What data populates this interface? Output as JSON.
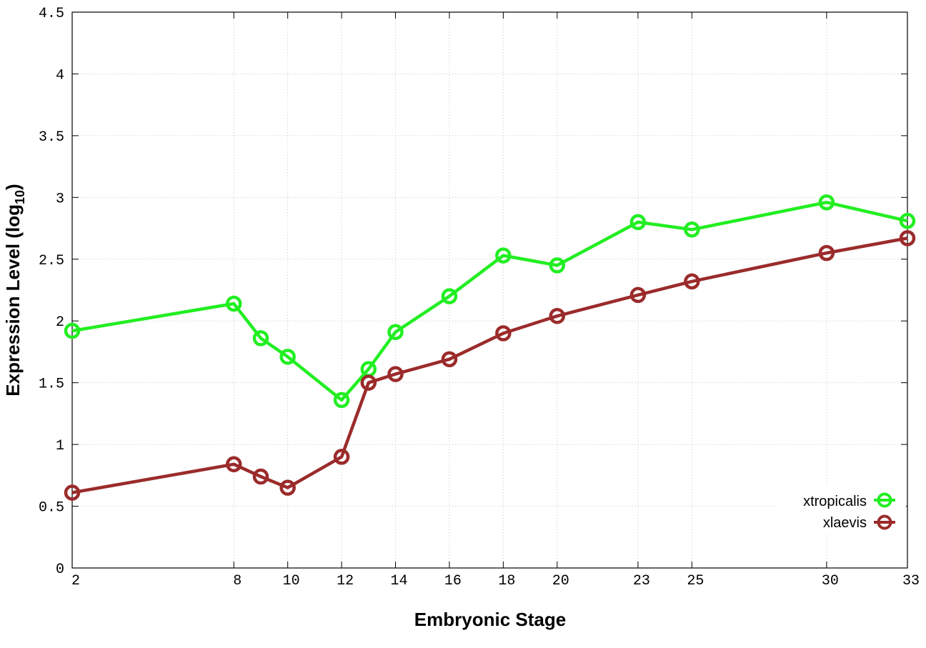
{
  "chart_data": {
    "type": "line",
    "xlabel": "Embryonic Stage",
    "ylabel_main": "Expression Level (log",
    "ylabel_sub": "10",
    "ylabel_close": ")",
    "xlim": [
      2,
      33
    ],
    "ylim": [
      0,
      4.5
    ],
    "x_ticks": [
      2,
      8,
      10,
      12,
      14,
      16,
      18,
      20,
      23,
      25,
      30,
      33
    ],
    "y_ticks": [
      0,
      0.5,
      1,
      1.5,
      2,
      2.5,
      3,
      3.5,
      4,
      4.5
    ],
    "y_tick_labels": [
      "0",
      "0.5",
      "1",
      "1.5",
      "2",
      "2.5",
      "3",
      "3.5",
      "4",
      "4.5"
    ],
    "grid": true,
    "legend_position": "bottom-right",
    "series": [
      {
        "name": "xtropicalis",
        "color": "#22ee22",
        "x": [
          2,
          8,
          9,
          10,
          12,
          13,
          14,
          16,
          18,
          20,
          23,
          25,
          30,
          33
        ],
        "y": [
          1.92,
          2.14,
          1.86,
          1.71,
          1.36,
          1.61,
          1.91,
          2.2,
          2.53,
          2.45,
          2.8,
          2.74,
          2.96,
          2.81
        ]
      },
      {
        "name": "xlaevis",
        "color": "#9b2b2b",
        "x": [
          2,
          8,
          9,
          10,
          12,
          13,
          14,
          16,
          18,
          20,
          23,
          25,
          30,
          33
        ],
        "y": [
          0.61,
          0.84,
          0.74,
          0.65,
          0.9,
          1.5,
          1.57,
          1.69,
          1.9,
          2.04,
          2.21,
          2.32,
          2.55,
          2.67
        ]
      }
    ]
  }
}
